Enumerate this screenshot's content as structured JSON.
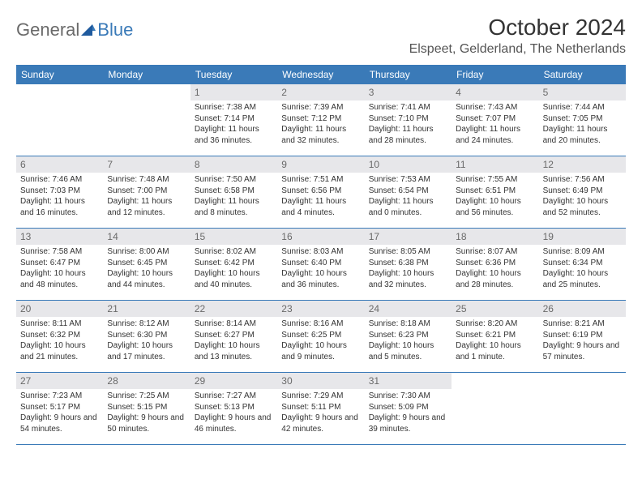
{
  "logo": {
    "part1": "General",
    "part2": "Blue"
  },
  "title": "October 2024",
  "location": "Elspeet, Gelderland, The Netherlands",
  "colors": {
    "header_bg": "#3a7ab8",
    "header_text": "#ffffff",
    "daynum_bg": "#e7e7ea",
    "daynum_text": "#6a6a6a",
    "border": "#3a7ab8",
    "body_text": "#333333",
    "page_bg": "#ffffff"
  },
  "day_names": [
    "Sunday",
    "Monday",
    "Tuesday",
    "Wednesday",
    "Thursday",
    "Friday",
    "Saturday"
  ],
  "weeks": [
    [
      null,
      null,
      {
        "n": "1",
        "sr": "Sunrise: 7:38 AM",
        "ss": "Sunset: 7:14 PM",
        "dl": "Daylight: 11 hours and 36 minutes."
      },
      {
        "n": "2",
        "sr": "Sunrise: 7:39 AM",
        "ss": "Sunset: 7:12 PM",
        "dl": "Daylight: 11 hours and 32 minutes."
      },
      {
        "n": "3",
        "sr": "Sunrise: 7:41 AM",
        "ss": "Sunset: 7:10 PM",
        "dl": "Daylight: 11 hours and 28 minutes."
      },
      {
        "n": "4",
        "sr": "Sunrise: 7:43 AM",
        "ss": "Sunset: 7:07 PM",
        "dl": "Daylight: 11 hours and 24 minutes."
      },
      {
        "n": "5",
        "sr": "Sunrise: 7:44 AM",
        "ss": "Sunset: 7:05 PM",
        "dl": "Daylight: 11 hours and 20 minutes."
      }
    ],
    [
      {
        "n": "6",
        "sr": "Sunrise: 7:46 AM",
        "ss": "Sunset: 7:03 PM",
        "dl": "Daylight: 11 hours and 16 minutes."
      },
      {
        "n": "7",
        "sr": "Sunrise: 7:48 AM",
        "ss": "Sunset: 7:00 PM",
        "dl": "Daylight: 11 hours and 12 minutes."
      },
      {
        "n": "8",
        "sr": "Sunrise: 7:50 AM",
        "ss": "Sunset: 6:58 PM",
        "dl": "Daylight: 11 hours and 8 minutes."
      },
      {
        "n": "9",
        "sr": "Sunrise: 7:51 AM",
        "ss": "Sunset: 6:56 PM",
        "dl": "Daylight: 11 hours and 4 minutes."
      },
      {
        "n": "10",
        "sr": "Sunrise: 7:53 AM",
        "ss": "Sunset: 6:54 PM",
        "dl": "Daylight: 11 hours and 0 minutes."
      },
      {
        "n": "11",
        "sr": "Sunrise: 7:55 AM",
        "ss": "Sunset: 6:51 PM",
        "dl": "Daylight: 10 hours and 56 minutes."
      },
      {
        "n": "12",
        "sr": "Sunrise: 7:56 AM",
        "ss": "Sunset: 6:49 PM",
        "dl": "Daylight: 10 hours and 52 minutes."
      }
    ],
    [
      {
        "n": "13",
        "sr": "Sunrise: 7:58 AM",
        "ss": "Sunset: 6:47 PM",
        "dl": "Daylight: 10 hours and 48 minutes."
      },
      {
        "n": "14",
        "sr": "Sunrise: 8:00 AM",
        "ss": "Sunset: 6:45 PM",
        "dl": "Daylight: 10 hours and 44 minutes."
      },
      {
        "n": "15",
        "sr": "Sunrise: 8:02 AM",
        "ss": "Sunset: 6:42 PM",
        "dl": "Daylight: 10 hours and 40 minutes."
      },
      {
        "n": "16",
        "sr": "Sunrise: 8:03 AM",
        "ss": "Sunset: 6:40 PM",
        "dl": "Daylight: 10 hours and 36 minutes."
      },
      {
        "n": "17",
        "sr": "Sunrise: 8:05 AM",
        "ss": "Sunset: 6:38 PM",
        "dl": "Daylight: 10 hours and 32 minutes."
      },
      {
        "n": "18",
        "sr": "Sunrise: 8:07 AM",
        "ss": "Sunset: 6:36 PM",
        "dl": "Daylight: 10 hours and 28 minutes."
      },
      {
        "n": "19",
        "sr": "Sunrise: 8:09 AM",
        "ss": "Sunset: 6:34 PM",
        "dl": "Daylight: 10 hours and 25 minutes."
      }
    ],
    [
      {
        "n": "20",
        "sr": "Sunrise: 8:11 AM",
        "ss": "Sunset: 6:32 PM",
        "dl": "Daylight: 10 hours and 21 minutes."
      },
      {
        "n": "21",
        "sr": "Sunrise: 8:12 AM",
        "ss": "Sunset: 6:30 PM",
        "dl": "Daylight: 10 hours and 17 minutes."
      },
      {
        "n": "22",
        "sr": "Sunrise: 8:14 AM",
        "ss": "Sunset: 6:27 PM",
        "dl": "Daylight: 10 hours and 13 minutes."
      },
      {
        "n": "23",
        "sr": "Sunrise: 8:16 AM",
        "ss": "Sunset: 6:25 PM",
        "dl": "Daylight: 10 hours and 9 minutes."
      },
      {
        "n": "24",
        "sr": "Sunrise: 8:18 AM",
        "ss": "Sunset: 6:23 PM",
        "dl": "Daylight: 10 hours and 5 minutes."
      },
      {
        "n": "25",
        "sr": "Sunrise: 8:20 AM",
        "ss": "Sunset: 6:21 PM",
        "dl": "Daylight: 10 hours and 1 minute."
      },
      {
        "n": "26",
        "sr": "Sunrise: 8:21 AM",
        "ss": "Sunset: 6:19 PM",
        "dl": "Daylight: 9 hours and 57 minutes."
      }
    ],
    [
      {
        "n": "27",
        "sr": "Sunrise: 7:23 AM",
        "ss": "Sunset: 5:17 PM",
        "dl": "Daylight: 9 hours and 54 minutes."
      },
      {
        "n": "28",
        "sr": "Sunrise: 7:25 AM",
        "ss": "Sunset: 5:15 PM",
        "dl": "Daylight: 9 hours and 50 minutes."
      },
      {
        "n": "29",
        "sr": "Sunrise: 7:27 AM",
        "ss": "Sunset: 5:13 PM",
        "dl": "Daylight: 9 hours and 46 minutes."
      },
      {
        "n": "30",
        "sr": "Sunrise: 7:29 AM",
        "ss": "Sunset: 5:11 PM",
        "dl": "Daylight: 9 hours and 42 minutes."
      },
      {
        "n": "31",
        "sr": "Sunrise: 7:30 AM",
        "ss": "Sunset: 5:09 PM",
        "dl": "Daylight: 9 hours and 39 minutes."
      },
      null,
      null
    ]
  ]
}
